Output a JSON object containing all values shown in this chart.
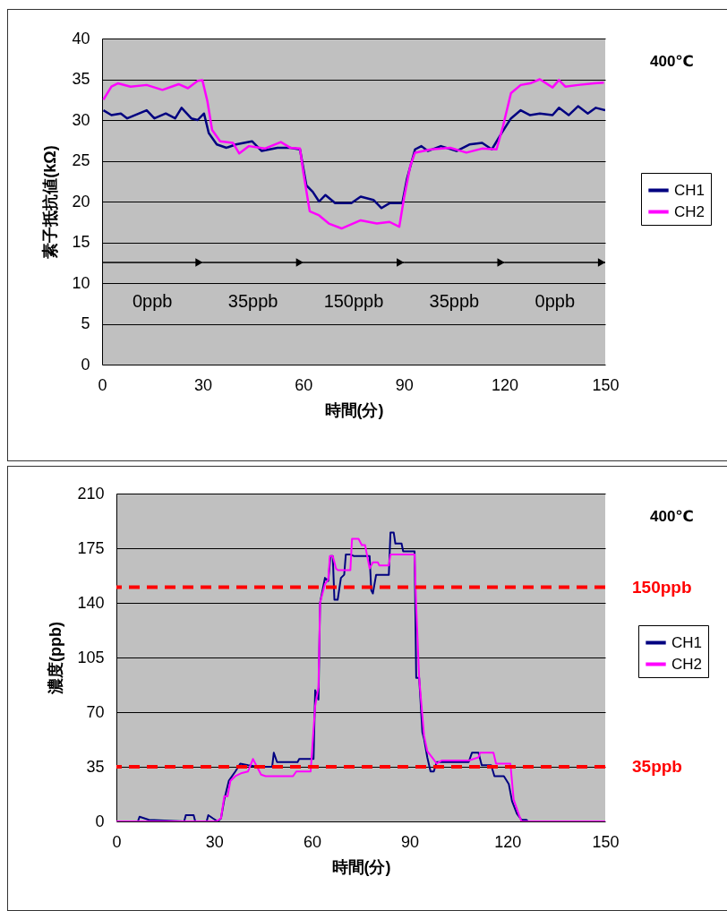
{
  "chart_data": [
    {
      "type": "line",
      "xlabel": "時間(分)",
      "ylabel": "素子抵抗値(kΩ)",
      "xlim": [
        0,
        150
      ],
      "xticks": [
        0,
        30,
        60,
        90,
        120,
        150
      ],
      "ylim": [
        0,
        40
      ],
      "yticks": [
        0,
        5,
        10,
        15,
        20,
        25,
        30,
        35,
        40
      ],
      "grid": "y",
      "legend": "right",
      "line_style": "solid",
      "annotations": [
        "400℃",
        "0ppb",
        "35ppb",
        "150ppb",
        "35ppb",
        "0ppb"
      ],
      "series": [
        {
          "name": "CH1",
          "color": "#000080",
          "x": [
            0.4,
            2.8,
            5.6,
            7.5,
            13.3,
            15.6,
            19.0,
            21.8,
            23.7,
            26.6,
            28.5,
            30.4,
            31.8,
            34.2,
            37.1,
            39.9,
            44.7,
            47.6,
            52.3,
            56.1,
            59.0,
            60.9,
            62.8,
            64.7,
            66.6,
            69.5,
            74.3,
            77.1,
            80.9,
            83.3,
            85.7,
            89.5,
            90.9,
            93.3,
            95.2,
            97.1,
            101.0,
            105.7,
            109.5,
            113.3,
            116.2,
            119.1,
            121.9,
            124.8,
            127.6,
            130.5,
            134.3,
            136.2,
            139.1,
            141.9,
            144.8,
            147.2,
            150.0
          ],
          "values": [
            31.2,
            30.6,
            30.8,
            30.2,
            31.2,
            30.2,
            30.8,
            30.2,
            31.5,
            30.2,
            30.0,
            30.8,
            28.4,
            27.0,
            26.6,
            27.0,
            27.4,
            26.2,
            26.6,
            26.6,
            26.4,
            22.0,
            21.2,
            20.0,
            20.8,
            19.8,
            19.8,
            20.6,
            20.2,
            19.2,
            19.8,
            19.8,
            22.8,
            26.4,
            26.8,
            26.2,
            26.8,
            26.2,
            27.0,
            27.2,
            26.4,
            28.4,
            30.2,
            31.2,
            30.6,
            30.8,
            30.6,
            31.5,
            30.6,
            31.7,
            30.8,
            31.5,
            31.2
          ]
        },
        {
          "name": "CH2",
          "color": "#ff00ff",
          "x": [
            0.4,
            2.8,
            4.7,
            8.5,
            13.3,
            18.0,
            22.8,
            25.6,
            28.5,
            29.9,
            31.4,
            32.8,
            35.2,
            39.0,
            40.9,
            43.8,
            48.5,
            53.3,
            56.1,
            59.0,
            60.0,
            61.9,
            64.7,
            67.6,
            71.4,
            77.1,
            81.9,
            85.7,
            88.6,
            90.0,
            91.9,
            93.3,
            98.1,
            103.8,
            108.6,
            113.3,
            117.6,
            119.5,
            121.9,
            124.8,
            127.6,
            130.5,
            134.3,
            136.2,
            138.1,
            141.9,
            146.7,
            149.6
          ],
          "values": [
            32.5,
            34.1,
            34.5,
            34.1,
            34.3,
            33.7,
            34.4,
            33.9,
            34.8,
            34.9,
            32.3,
            28.8,
            27.4,
            27.2,
            25.9,
            26.8,
            26.5,
            27.3,
            26.6,
            26.5,
            23.6,
            18.8,
            18.3,
            17.3,
            16.7,
            17.7,
            17.3,
            17.5,
            16.9,
            20.4,
            24.4,
            26.0,
            26.4,
            26.6,
            26.0,
            26.5,
            26.4,
            29.2,
            33.3,
            34.3,
            34.5,
            35.0,
            34.0,
            34.9,
            34.1,
            34.3,
            34.5,
            34.6
          ]
        }
      ]
    },
    {
      "type": "line",
      "xlabel": "時間(分)",
      "ylabel": "濃度(ppb)",
      "xlim": [
        0,
        150
      ],
      "xticks": [
        0,
        30,
        60,
        90,
        120,
        150
      ],
      "ylim": [
        0,
        210
      ],
      "yticks": [
        0,
        35,
        70,
        105,
        140,
        175,
        210
      ],
      "grid": "y",
      "legend": "right",
      "line_style": "solid",
      "annotations": [
        "400℃"
      ],
      "ref_lines": [
        {
          "axis": "y",
          "value": 150,
          "label": "150ppb",
          "color": "#ff0000",
          "line_style": "dashed"
        },
        {
          "axis": "y",
          "value": 35,
          "label": "35ppb",
          "color": "#ff0000",
          "line_style": "dashed"
        }
      ],
      "series": [
        {
          "name": "CH1",
          "color": "#000080",
          "x": [
            0,
            6.6,
            7.1,
            10.0,
            20.8,
            21.3,
            23.7,
            24.2,
            27.7,
            28.2,
            29.6,
            31.1,
            32.1,
            33.1,
            34.5,
            36.5,
            38.0,
            40.4,
            43.4,
            47.8,
            48.3,
            49.3,
            51.2,
            55.6,
            56.1,
            60.5,
            61.0,
            62.0,
            62.5,
            64.0,
            65.0,
            65.7,
            66.4,
            66.9,
            67.9,
            68.9,
            69.9,
            70.4,
            71.8,
            72.8,
            77.7,
            78.2,
            78.7,
            79.7,
            83.6,
            84.1,
            85.1,
            85.6,
            87.5,
            88.0,
            91.5,
            92.0,
            92.9,
            93.9,
            94.4,
            95.4,
            96.4,
            97.4,
            98.3,
            100.3,
            108.1,
            109.1,
            111.1,
            112.1,
            115.0,
            116.0,
            118.9,
            120.4,
            121.4,
            122.9,
            124.3,
            125.8,
            126.3,
            150
          ],
          "values": [
            0,
            0,
            3,
            1,
            0,
            4,
            4,
            0,
            0,
            4,
            2,
            0,
            2,
            14,
            26,
            32,
            37,
            36,
            35,
            35,
            44,
            38,
            38,
            38,
            40,
            40,
            84,
            78,
            140,
            156,
            154,
            170,
            170,
            142,
            142,
            156,
            158,
            171,
            171,
            170,
            170,
            148,
            146,
            158,
            158,
            185,
            185,
            178,
            178,
            173,
            173,
            92,
            92,
            57,
            53,
            41,
            32,
            32,
            38,
            38,
            38,
            44,
            44,
            36,
            36,
            29,
            29,
            24,
            13,
            5,
            1,
            1,
            0,
            0
          ]
        },
        {
          "name": "CH2",
          "color": "#ff00ff",
          "x": [
            0,
            30.6,
            32.1,
            33.1,
            34.1,
            35.0,
            36.5,
            38.5,
            40.4,
            41.9,
            42.9,
            44.4,
            45.8,
            54.2,
            55.2,
            59.6,
            61.0,
            62.0,
            62.5,
            64.0,
            65.0,
            65.5,
            66.4,
            67.4,
            67.9,
            71.8,
            72.3,
            74.3,
            75.3,
            76.3,
            77.7,
            78.7,
            80.2,
            80.7,
            83.6,
            84.1,
            91.5,
            92.0,
            92.9,
            94.4,
            95.4,
            96.9,
            98.3,
            99.8,
            108.1,
            111.1,
            111.6,
            115.7,
            116.5,
            120.9,
            121.9,
            123.4,
            124.3,
            150
          ],
          "values": [
            0,
            0,
            2,
            16,
            16,
            26,
            29,
            31,
            32,
            40,
            36,
            30,
            29,
            29,
            32,
            32,
            74,
            86,
            140,
            152,
            155,
            170,
            170,
            162,
            161,
            161,
            181,
            181,
            177,
            177,
            162,
            166,
            166,
            164,
            164,
            171,
            171,
            138,
            92,
            55,
            45,
            41,
            37,
            39,
            39,
            41,
            44,
            44,
            37,
            37,
            14,
            5,
            0,
            0
          ]
        }
      ]
    }
  ]
}
